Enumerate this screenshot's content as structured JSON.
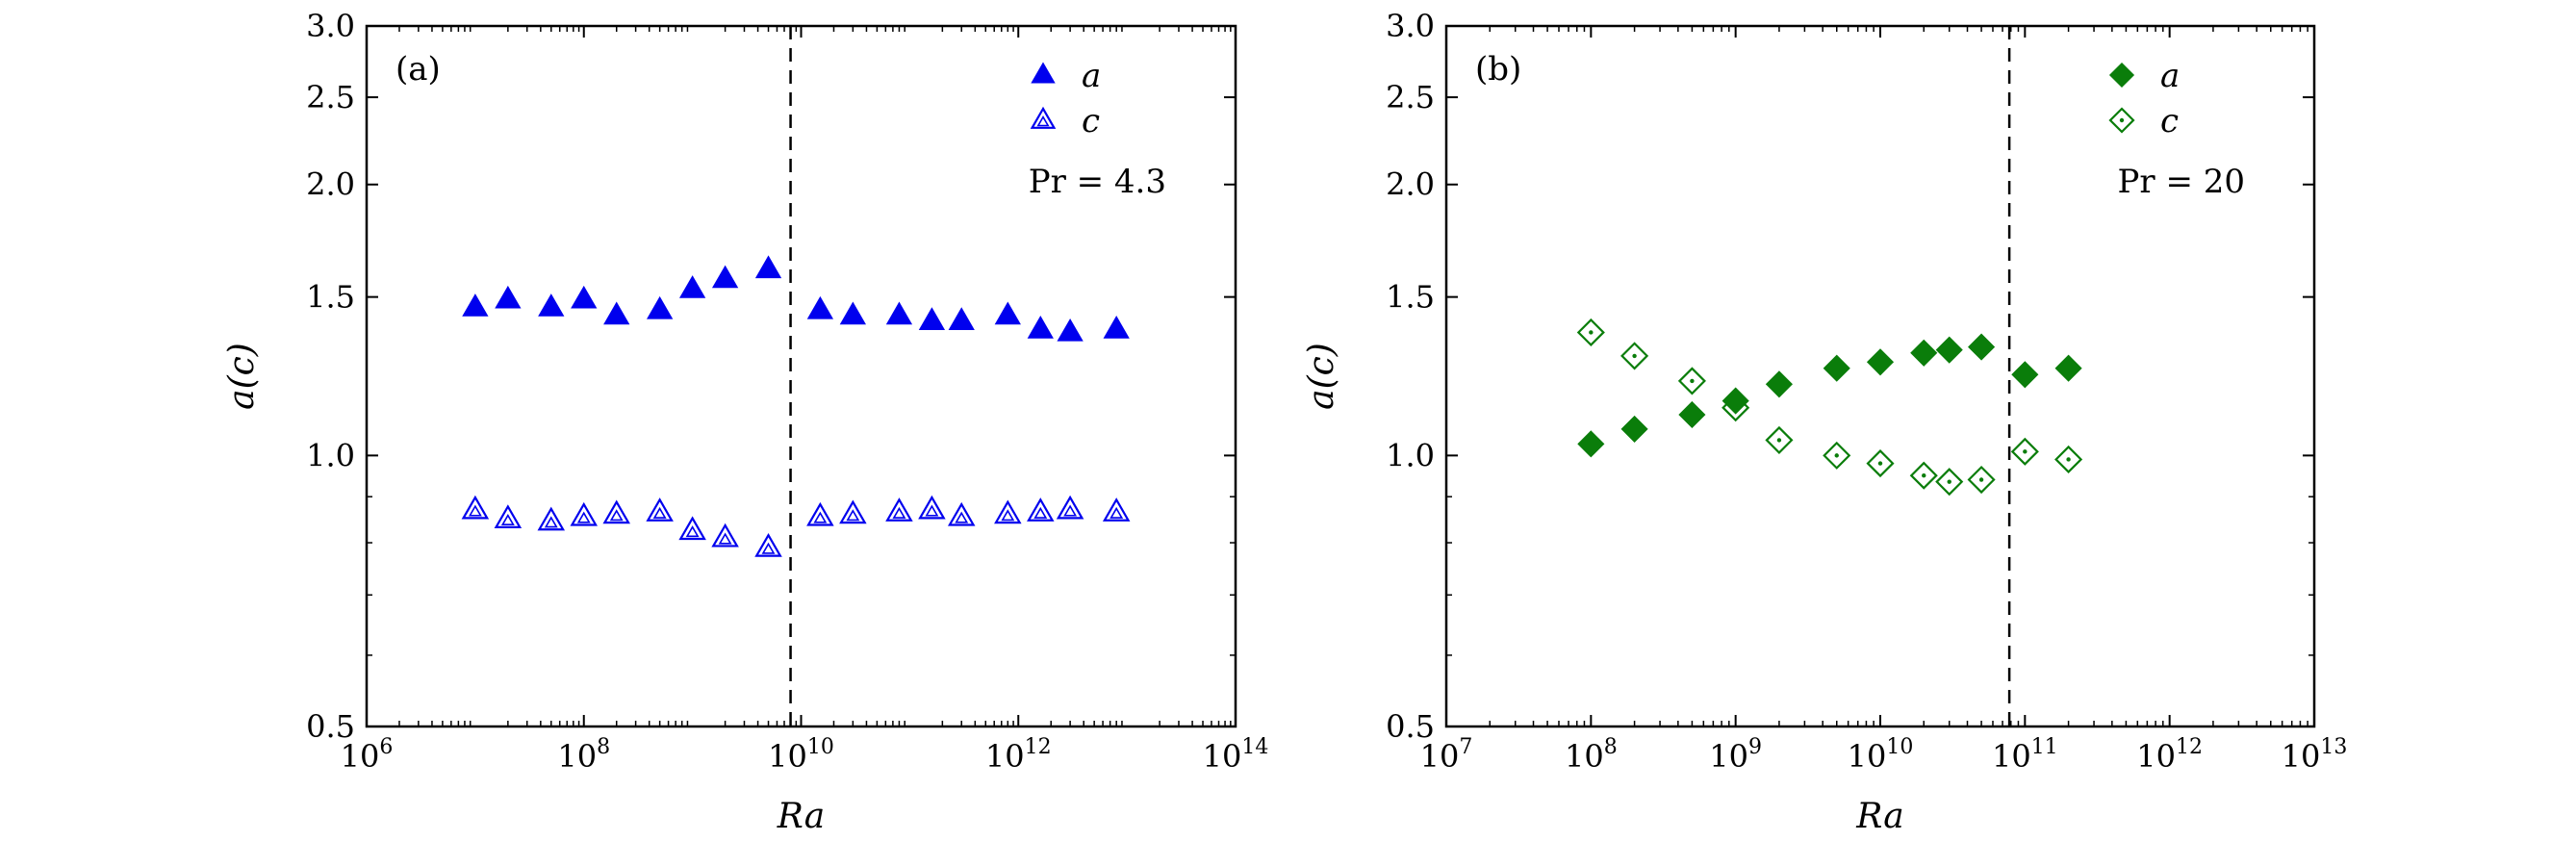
{
  "colors": {
    "panel_a": "#0000ee",
    "panel_b": "#0a7d0a",
    "axis": "#000000"
  },
  "chart_data": [
    {
      "type": "scatter",
      "panel_label": "(a)",
      "xlabel": "Ra",
      "ylabel": "a(c)",
      "x_scale": "log",
      "y_scale": "log",
      "xlim": [
        1000000.0,
        100000000000000.0
      ],
      "ylim": [
        0.5,
        3.0
      ],
      "x_ticks": [
        {
          "value": 1000000.0,
          "base": "10",
          "exp": "6"
        },
        {
          "value": 100000000.0,
          "base": "10",
          "exp": "8"
        },
        {
          "value": 10000000000.0,
          "base": "10",
          "exp": "10"
        },
        {
          "value": 1000000000000.0,
          "base": "10",
          "exp": "12"
        },
        {
          "value": 100000000000000.0,
          "base": "10",
          "exp": "14"
        }
      ],
      "y_ticks": [
        {
          "value": 0.5,
          "label": "0.5"
        },
        {
          "value": 1.0,
          "label": "1.0"
        },
        {
          "value": 1.5,
          "label": "1.5"
        },
        {
          "value": 2.0,
          "label": "2.0"
        },
        {
          "value": 2.5,
          "label": "2.5"
        },
        {
          "value": 3.0,
          "label": "3.0"
        }
      ],
      "vline_x": 8000000000.0,
      "annotation": "Pr = 4.3",
      "legend_position": "top-right",
      "grid": false,
      "series": [
        {
          "name": "a",
          "marker": "triangle-filled",
          "x": [
            10000000.0,
            20000000.0,
            50000000.0,
            100000000.0,
            200000000.0,
            500000000.0,
            1000000000.0,
            2000000000.0,
            5000000000.0,
            15000000000.0,
            30000000000.0,
            80000000000.0,
            160000000000.0,
            300000000000.0,
            800000000000.0,
            1600000000000.0,
            3000000000000.0,
            8000000000000.0
          ],
          "y": [
            1.46,
            1.49,
            1.46,
            1.49,
            1.43,
            1.45,
            1.53,
            1.57,
            1.61,
            1.45,
            1.43,
            1.43,
            1.41,
            1.41,
            1.43,
            1.38,
            1.37,
            1.38
          ]
        },
        {
          "name": "c",
          "marker": "triangle-open",
          "x": [
            10000000.0,
            20000000.0,
            50000000.0,
            100000000.0,
            200000000.0,
            500000000.0,
            1000000000.0,
            2000000000.0,
            5000000000.0,
            15000000000.0,
            30000000000.0,
            80000000000.0,
            160000000000.0,
            300000000000.0,
            800000000000.0,
            1600000000000.0,
            3000000000000.0,
            8000000000000.0
          ],
          "y": [
            0.87,
            0.85,
            0.845,
            0.855,
            0.86,
            0.865,
            0.825,
            0.81,
            0.79,
            0.855,
            0.86,
            0.865,
            0.87,
            0.855,
            0.86,
            0.865,
            0.87,
            0.865
          ]
        }
      ]
    },
    {
      "type": "scatter",
      "panel_label": "(b)",
      "xlabel": "Ra",
      "ylabel": "a(c)",
      "x_scale": "log",
      "y_scale": "log",
      "xlim": [
        10000000.0,
        10000000000000.0
      ],
      "ylim": [
        0.5,
        3.0
      ],
      "x_ticks": [
        {
          "value": 10000000.0,
          "base": "10",
          "exp": "7"
        },
        {
          "value": 100000000.0,
          "base": "10",
          "exp": "8"
        },
        {
          "value": 1000000000.0,
          "base": "10",
          "exp": "9"
        },
        {
          "value": 10000000000.0,
          "base": "10",
          "exp": "10"
        },
        {
          "value": 100000000000.0,
          "base": "10",
          "exp": "11"
        },
        {
          "value": 1000000000000.0,
          "base": "10",
          "exp": "12"
        },
        {
          "value": 10000000000000.0,
          "base": "10",
          "exp": "13"
        }
      ],
      "y_ticks": [
        {
          "value": 0.5,
          "label": "0.5"
        },
        {
          "value": 1.0,
          "label": "1.0"
        },
        {
          "value": 1.5,
          "label": "1.5"
        },
        {
          "value": 2.0,
          "label": "2.0"
        },
        {
          "value": 2.5,
          "label": "2.5"
        },
        {
          "value": 3.0,
          "label": "3.0"
        }
      ],
      "vline_x": 78000000000.0,
      "annotation": "Pr = 20",
      "legend_position": "top-right",
      "grid": false,
      "series": [
        {
          "name": "a",
          "marker": "diamond-filled",
          "x": [
            100000000.0,
            200000000.0,
            500000000.0,
            1000000000.0,
            2000000000.0,
            5000000000.0,
            10000000000.0,
            20000000000.0,
            30000000000.0,
            50000000000.0,
            100000000000.0,
            200000000000.0
          ],
          "y": [
            1.03,
            1.07,
            1.11,
            1.15,
            1.2,
            1.25,
            1.27,
            1.3,
            1.31,
            1.32,
            1.23,
            1.25
          ]
        },
        {
          "name": "c",
          "marker": "diamond-open",
          "x": [
            100000000.0,
            200000000.0,
            500000000.0,
            1000000000.0,
            2000000000.0,
            5000000000.0,
            10000000000.0,
            20000000000.0,
            30000000000.0,
            50000000000.0,
            100000000000.0,
            200000000000.0
          ],
          "y": [
            1.37,
            1.29,
            1.21,
            1.13,
            1.04,
            1.0,
            0.98,
            0.95,
            0.935,
            0.94,
            1.01,
            0.99
          ]
        }
      ]
    }
  ]
}
